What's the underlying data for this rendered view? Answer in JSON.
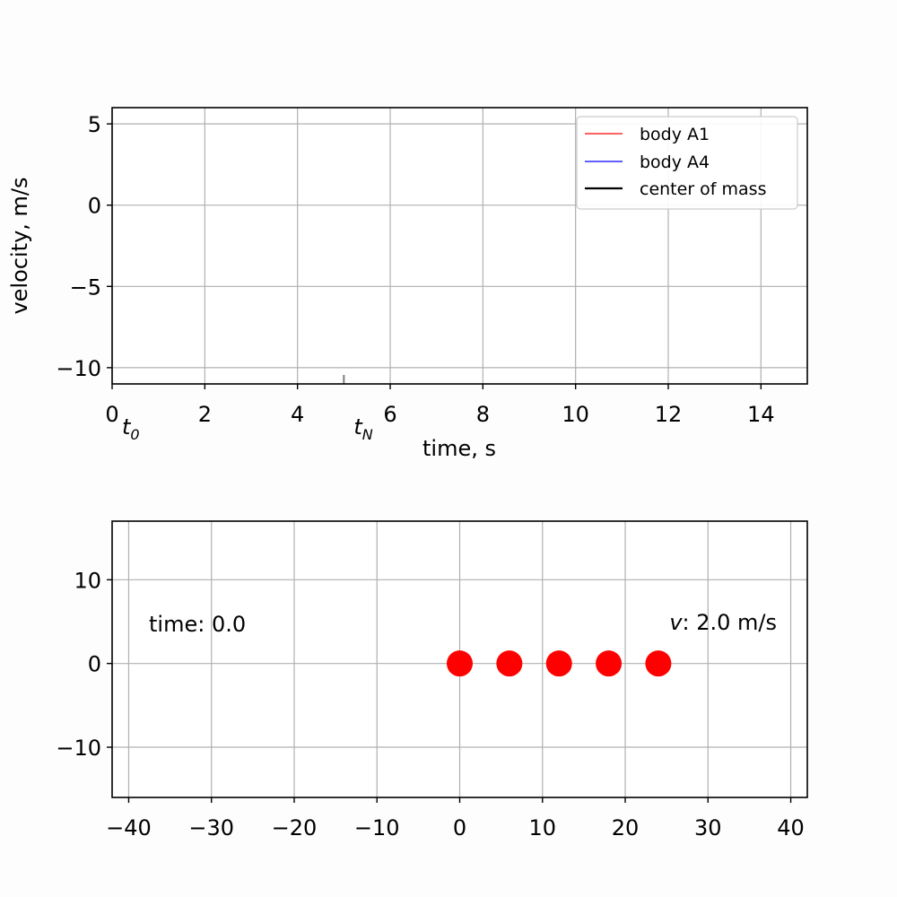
{
  "chart_data": [
    {
      "type": "line",
      "xlabel": "time, s",
      "ylabel": "velocity, m/s",
      "xlim": [
        0,
        15
      ],
      "ylim": [
        -11,
        6
      ],
      "xticks": [
        0,
        2,
        4,
        6,
        8,
        10,
        12,
        14
      ],
      "yticks": [
        5,
        0,
        -5,
        -10
      ],
      "xtick_labels": [
        "0",
        "2",
        "4",
        "6",
        "8",
        "10",
        "12",
        "14"
      ],
      "ytick_labels": [
        "5",
        "0",
        "−5",
        "−10"
      ],
      "grid": true,
      "legend_position": "top-right",
      "series": [
        {
          "name": "body A1",
          "color": "#ff0000",
          "x": [],
          "y": []
        },
        {
          "name": "body A4",
          "color": "#0000ff",
          "x": [],
          "y": []
        },
        {
          "name": "center of mass",
          "color": "#000000",
          "x": [],
          "y": []
        }
      ],
      "markers": [
        {
          "label_base": "t",
          "label_sub": "0",
          "x": 0
        },
        {
          "label_base": "t",
          "label_sub": "N",
          "x": 5
        }
      ]
    },
    {
      "type": "scatter",
      "xlim": [
        -42,
        42
      ],
      "ylim": [
        -16,
        17
      ],
      "xticks": [
        -40,
        -30,
        -20,
        -10,
        0,
        10,
        20,
        30,
        40
      ],
      "yticks": [
        10,
        0,
        -10
      ],
      "xtick_labels": [
        "−40",
        "−30",
        "−20",
        "−10",
        "0",
        "10",
        "20",
        "30",
        "40"
      ],
      "ytick_labels": [
        "10",
        "0",
        "−10"
      ],
      "grid": true,
      "points": [
        {
          "x": 0,
          "y": 0
        },
        {
          "x": 6,
          "y": 0
        },
        {
          "x": 12,
          "y": 0
        },
        {
          "x": 18,
          "y": 0
        },
        {
          "x": 24,
          "y": 0
        }
      ],
      "point_color": "#ff0000",
      "annotations": {
        "time_label": "time: 0.0",
        "velocity_symbol": "v",
        "velocity_value": ": 2.0 m/s"
      }
    }
  ]
}
